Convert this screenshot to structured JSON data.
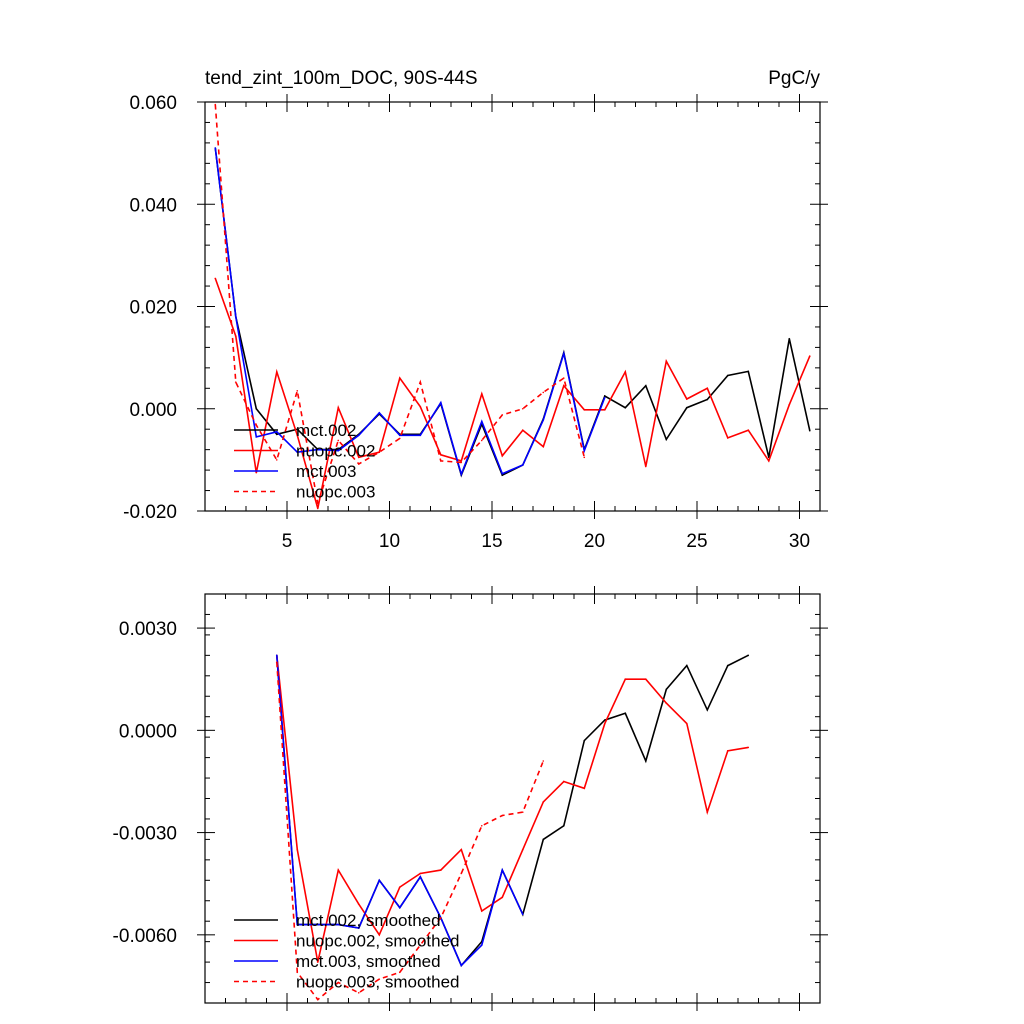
{
  "colors": {
    "mct_002": "#000000",
    "nuopc_002": "#ff0000",
    "mct_003": "#0000ff",
    "nuopc_003": "#ff0000"
  },
  "chart_data": [
    {
      "type": "line",
      "title": "tend_zint_100m_DOC, 90S-44S",
      "units": "PgC/y",
      "xlim": [
        1,
        31
      ],
      "ylim": [
        -0.02,
        0.06
      ],
      "xticks": [
        5,
        10,
        15,
        20,
        25,
        30
      ],
      "xtick_labels": [
        "5",
        "10",
        "15",
        "20",
        "25",
        "30"
      ],
      "yticks": [
        -0.02,
        0,
        0.02,
        0.04,
        0.06
      ],
      "ytick_labels": [
        "-0.020",
        "0.000",
        "0.020",
        "0.040",
        "0.060"
      ],
      "legend_position": "lower-left",
      "series": [
        {
          "name": "mct.002",
          "color": "#000000",
          "dash": "solid",
          "x": [
            1.5,
            2.5,
            3.5,
            4.5,
            5.5,
            6.5,
            7.5,
            8.5,
            9.5,
            10.5,
            11.5,
            12.5,
            13.5,
            14.5,
            15.5,
            16.5,
            17.5,
            18.5,
            19.5,
            20.5,
            21.5,
            22.5,
            23.5,
            24.5,
            25.5,
            26.5,
            27.5,
            28.5,
            29.5,
            30.5
          ],
          "y": [
            0.051,
            0.018,
            0.0,
            -0.005,
            -0.004,
            -0.008,
            -0.008,
            -0.005,
            -0.001,
            -0.005,
            -0.005,
            0.001,
            -0.013,
            -0.003,
            -0.013,
            -0.011,
            -0.002,
            0.011,
            -0.008,
            0.0025,
            0.0002,
            0.0045,
            -0.006,
            0.0002,
            0.0018,
            0.0065,
            0.0073,
            -0.0095,
            0.0137,
            -0.0043
          ]
        },
        {
          "name": "nuopc.002",
          "color": "#ff0000",
          "dash": "solid",
          "x": [
            1.5,
            2.5,
            3.5,
            4.5,
            5.5,
            6.5,
            7.5,
            8.5,
            9.5,
            10.5,
            11.5,
            12.5,
            13.5,
            14.5,
            15.5,
            16.5,
            17.5,
            18.5,
            19.5,
            20.5,
            21.5,
            22.5,
            23.5,
            24.5,
            25.5,
            26.5,
            27.5,
            28.5,
            29.5,
            30.5
          ],
          "y": [
            0.0255,
            0.0142,
            -0.0125,
            0.0072,
            -0.0052,
            -0.0195,
            0.0002,
            -0.0095,
            -0.0085,
            0.006,
            0.0004,
            -0.009,
            -0.0102,
            0.0029,
            -0.0092,
            -0.0042,
            -0.0074,
            0.0045,
            -0.0002,
            -0.0002,
            0.0072,
            -0.0113,
            0.0093,
            0.0019,
            0.004,
            -0.0057,
            -0.0042,
            -0.0102,
            0.0008,
            0.0103
          ]
        },
        {
          "name": "mct.003",
          "color": "#0000ff",
          "dash": "solid",
          "x": [
            1.5,
            2.5,
            3.5,
            4.5,
            5.5,
            6.5,
            7.5,
            8.5,
            9.5,
            10.5,
            11.5,
            12.5,
            13.5,
            14.5,
            15.5,
            16.5,
            17.5,
            18.5,
            19.5,
            20.5
          ],
          "y": [
            0.051,
            0.018,
            -0.0055,
            -0.0045,
            -0.0085,
            -0.008,
            -0.0082,
            -0.0052,
            -0.0008,
            -0.0052,
            -0.0052,
            0.0012,
            -0.0128,
            -0.0025,
            -0.0127,
            -0.011,
            -0.0022,
            0.0108,
            -0.0082,
            0.0022
          ]
        },
        {
          "name": "nuopc.003",
          "color": "#ff0000",
          "dash": "dashed",
          "x": [
            1.5,
            2.5,
            3.5,
            4.5,
            5.5,
            6.5,
            7.5,
            8.5,
            9.5,
            10.5,
            11.5,
            12.5,
            13.5,
            14.5,
            15.5,
            16.5,
            17.5,
            18.5,
            19.5
          ],
          "y": [
            0.0595,
            0.0052,
            -0.0032,
            -0.01,
            0.0035,
            -0.0185,
            -0.0062,
            -0.0108,
            -0.0085,
            -0.0058,
            0.0052,
            -0.0102,
            -0.0105,
            -0.0062,
            -0.0012,
            0.0,
            0.0032,
            0.006,
            -0.0095
          ]
        }
      ]
    },
    {
      "type": "line",
      "xlim": [
        1,
        31
      ],
      "ylim": [
        -0.008,
        0.004
      ],
      "xticks": [
        5,
        10,
        15,
        20,
        25,
        30
      ],
      "yticks": [
        -0.006,
        -0.003,
        0,
        0.003
      ],
      "ytick_labels": [
        "-0.0060",
        "-0.0030",
        "0.0000",
        "0.0030"
      ],
      "legend_position": "lower-left",
      "series": [
        {
          "name": "mct.002, smoothed",
          "color": "#000000",
          "dash": "solid",
          "x": [
            4.5,
            5.5,
            6.5,
            7.5,
            8.5,
            9.5,
            10.5,
            11.5,
            12.5,
            13.5,
            14.5,
            15.5,
            16.5,
            17.5,
            18.5,
            19.5,
            20.5,
            21.5,
            22.5,
            23.5,
            24.5,
            25.5,
            26.5,
            27.5
          ],
          "y": [
            0.0022,
            -0.0057,
            -0.0057,
            -0.0057,
            -0.0058,
            -0.0044,
            -0.0052,
            -0.0043,
            -0.0055,
            -0.0069,
            -0.0062,
            -0.0041,
            -0.0054,
            -0.0032,
            -0.0028,
            -0.0003,
            0.0003,
            0.0005,
            -0.0009,
            0.0012,
            0.0019,
            0.0006,
            0.0019,
            0.0022
          ]
        },
        {
          "name": "nuopc.002, smoothed",
          "color": "#ff0000",
          "dash": "solid",
          "x": [
            4.5,
            5.5,
            6.5,
            7.5,
            8.5,
            9.5,
            10.5,
            11.5,
            12.5,
            13.5,
            14.5,
            15.5,
            16.5,
            17.5,
            18.5,
            19.5,
            20.5,
            21.5,
            22.5,
            23.5,
            24.5,
            25.5,
            26.5,
            27.5
          ],
          "y": [
            0.0022,
            -0.0035,
            -0.0068,
            -0.0041,
            -0.0051,
            -0.006,
            -0.0046,
            -0.0042,
            -0.0041,
            -0.0035,
            -0.0053,
            -0.0049,
            -0.0035,
            -0.0021,
            -0.0015,
            -0.0017,
            0.0002,
            0.0015,
            0.0015,
            0.0008,
            0.0002,
            -0.0024,
            -0.0006,
            -0.0005
          ]
        },
        {
          "name": "mct.003, smoothed",
          "color": "#0000ff",
          "dash": "solid",
          "x": [
            4.5,
            5.5,
            6.5,
            7.5,
            8.5,
            9.5,
            10.5,
            11.5,
            12.5,
            13.5,
            14.5,
            15.5,
            16.5
          ],
          "y": [
            0.0022,
            -0.0057,
            -0.0057,
            -0.0057,
            -0.0058,
            -0.0044,
            -0.0052,
            -0.0043,
            -0.0055,
            -0.0069,
            -0.0063,
            -0.0041,
            -0.0054
          ]
        },
        {
          "name": "nuopc.003, smoothed",
          "color": "#ff0000",
          "dash": "dashed",
          "x": [
            4.5,
            5.5,
            6.5,
            7.5,
            8.5,
            9.5,
            10.5,
            11.5,
            12.5,
            13.5,
            14.5,
            15.5,
            16.5,
            17.5
          ],
          "y": [
            0.002,
            -0.0071,
            -0.0079,
            -0.0074,
            -0.0077,
            -0.0073,
            -0.0071,
            -0.0063,
            -0.0055,
            -0.0042,
            -0.0028,
            -0.0025,
            -0.0024,
            -0.0009
          ]
        }
      ]
    }
  ]
}
